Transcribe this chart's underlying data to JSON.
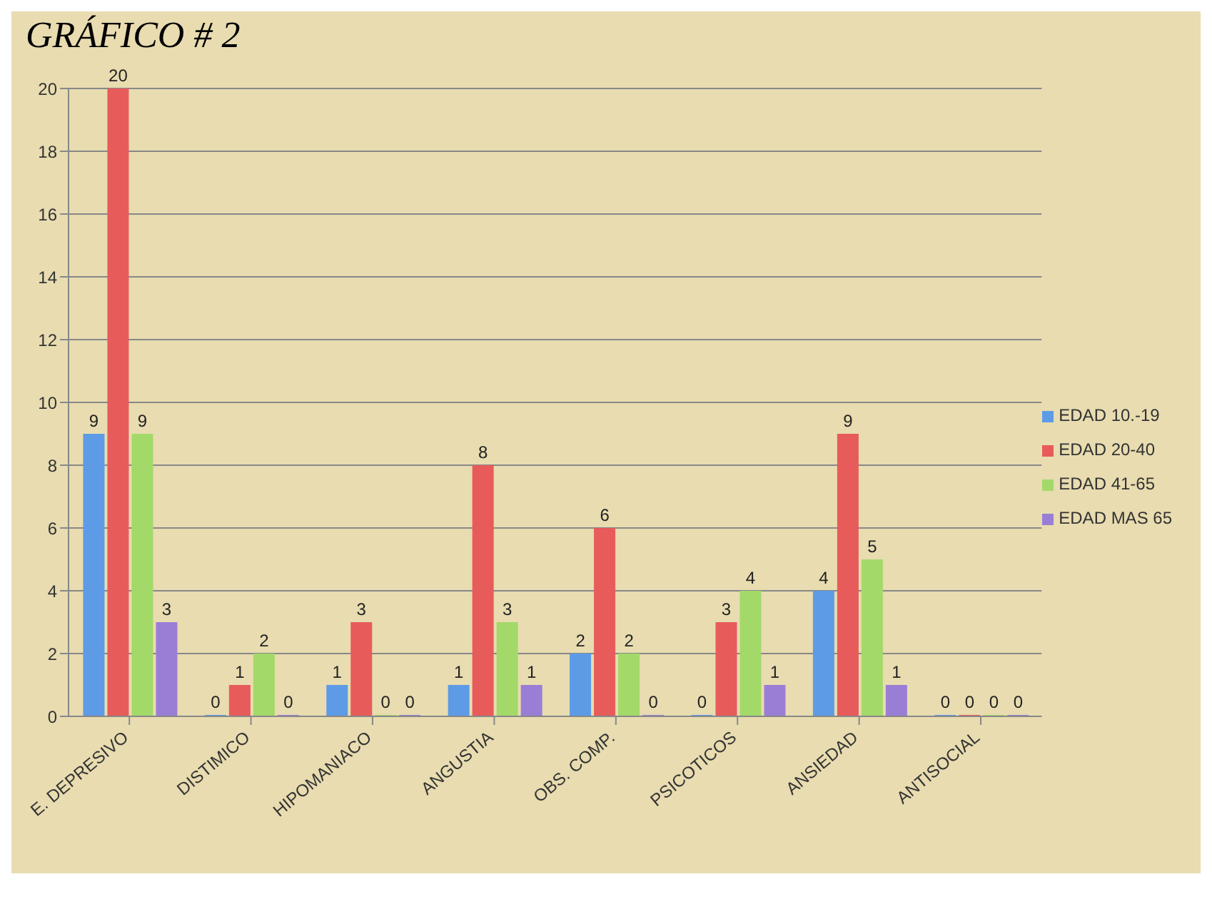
{
  "chart_data": {
    "type": "bar",
    "title": "GRÁFICO # 2",
    "categories": [
      "E. DEPRESIVO",
      "DISTIMICO",
      "HIPOMANIACO",
      "ANGUSTIA",
      "OBS. COMP.",
      "PSICOTICOS",
      "ANSIEDAD",
      "ANTISOCIAL"
    ],
    "series": [
      {
        "name": "EDAD 10.-19",
        "color": "#5d9be6",
        "values": [
          9,
          0,
          1,
          1,
          2,
          0,
          4,
          0
        ]
      },
      {
        "name": "EDAD 20-40",
        "color": "#e85b5b",
        "values": [
          20,
          1,
          3,
          8,
          6,
          3,
          9,
          0
        ]
      },
      {
        "name": "EDAD 41-65",
        "color": "#a3d969",
        "values": [
          9,
          2,
          0,
          3,
          2,
          4,
          5,
          0
        ]
      },
      {
        "name": "EDAD MAS 65",
        "color": "#9a7ed6",
        "values": [
          3,
          0,
          0,
          1,
          0,
          1,
          1,
          0
        ]
      }
    ],
    "ylim": [
      0,
      20
    ],
    "yticks": [
      0,
      2,
      4,
      6,
      8,
      10,
      12,
      14,
      16,
      18,
      20
    ],
    "grid": "y",
    "legend": "right",
    "data_labels": true
  }
}
